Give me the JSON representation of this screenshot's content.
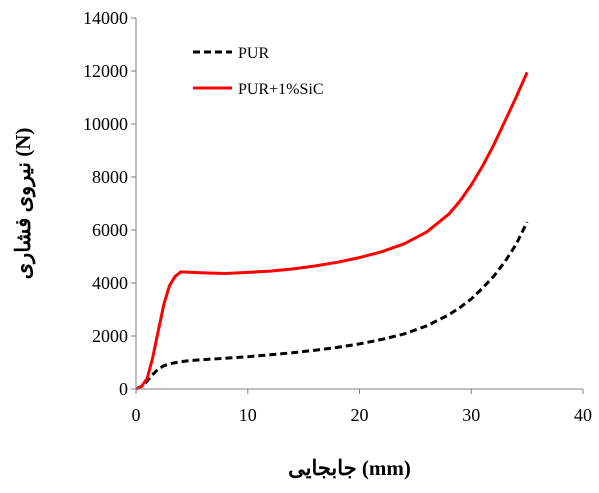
{
  "chart_data": {
    "type": "line",
    "title": "",
    "xlabel": "جابجایی (mm)",
    "ylabel": "نیروی فشاری (N)",
    "xlim": [
      0,
      40
    ],
    "ylim": [
      0,
      14000
    ],
    "xticks": [
      0,
      10,
      20,
      30,
      40
    ],
    "yticks": [
      0,
      2000,
      4000,
      6000,
      8000,
      10000,
      12000,
      14000
    ],
    "grid": false,
    "legend_position": "top-left",
    "series": [
      {
        "name": "PUR",
        "color": "#000000",
        "style": "dashed",
        "x": [
          0,
          0.5,
          1,
          1.5,
          2,
          2.5,
          3,
          4,
          5,
          6,
          8,
          10,
          12,
          14,
          16,
          18,
          20,
          22,
          24,
          26,
          28,
          29,
          30,
          31,
          32,
          33,
          34,
          35
        ],
        "y": [
          0,
          100,
          300,
          550,
          750,
          880,
          950,
          1030,
          1080,
          1110,
          1160,
          1220,
          1290,
          1370,
          1460,
          1570,
          1700,
          1870,
          2080,
          2380,
          2800,
          3080,
          3400,
          3800,
          4250,
          4800,
          5450,
          6300
        ]
      },
      {
        "name": "PUR+1%SiC",
        "color": "#ff0000",
        "style": "solid",
        "x": [
          0,
          0.5,
          1,
          1.5,
          2,
          2.5,
          3,
          3.5,
          4,
          5,
          6,
          8,
          10,
          12,
          14,
          16,
          18,
          20,
          22,
          24,
          26,
          28,
          29,
          30,
          31,
          32,
          33,
          34,
          35
        ],
        "y": [
          0,
          100,
          400,
          1200,
          2200,
          3200,
          3900,
          4250,
          4420,
          4400,
          4380,
          4360,
          4400,
          4450,
          4530,
          4640,
          4780,
          4960,
          5180,
          5480,
          5920,
          6600,
          7100,
          7700,
          8400,
          9200,
          10100,
          11000,
          11950
        ]
      }
    ]
  }
}
